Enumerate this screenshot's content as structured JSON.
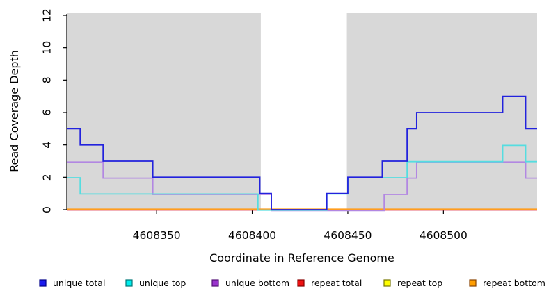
{
  "figure": {
    "background": "#ffffff"
  },
  "chart_data": {
    "type": "line",
    "subtype": "step",
    "title": "",
    "xlabel": "Coordinate in Reference Genome",
    "ylabel": "Read Coverage Depth",
    "xlim": [
      4608303,
      4608549
    ],
    "ylim": [
      0,
      12
    ],
    "x_ticks": [
      4608350,
      4608400,
      4608450,
      4608500
    ],
    "y_ticks": [
      0,
      2,
      4,
      6,
      8,
      10,
      12
    ],
    "grid": false,
    "shaded_regions": {
      "color": "#d8d8d8",
      "ranges": [
        [
          4608303,
          4608404.5
        ],
        [
          4608449.5,
          4608549
        ]
      ]
    },
    "series": [
      {
        "name": "unique total",
        "color": "#2222dd",
        "steps": [
          [
            4608303,
            5
          ],
          [
            4608310,
            4
          ],
          [
            4608322,
            3
          ],
          [
            4608348,
            2
          ],
          [
            4608404,
            1
          ],
          [
            4608410,
            0
          ],
          [
            4608439,
            1
          ],
          [
            4608450,
            2
          ],
          [
            4608468,
            3
          ],
          [
            4608481,
            5
          ],
          [
            4608486,
            6
          ],
          [
            4608531,
            7
          ],
          [
            4608543,
            5
          ],
          [
            4608549,
            5
          ]
        ]
      },
      {
        "name": "unique top",
        "color": "#55dde0",
        "steps": [
          [
            4608303,
            2
          ],
          [
            4608310,
            1
          ],
          [
            4608403,
            0
          ],
          [
            4608439,
            1
          ],
          [
            4608450,
            2
          ],
          [
            4608481,
            3
          ],
          [
            4608531,
            4
          ],
          [
            4608543,
            3
          ],
          [
            4608549,
            3
          ]
        ]
      },
      {
        "name": "unique bottom",
        "color": "#b287e2",
        "steps": [
          [
            4608303,
            3
          ],
          [
            4608322,
            2
          ],
          [
            4608348,
            1
          ],
          [
            4608410,
            0
          ],
          [
            4608469,
            1
          ],
          [
            4608481,
            2
          ],
          [
            4608486,
            3
          ],
          [
            4608543,
            2
          ],
          [
            4608549,
            2
          ]
        ]
      },
      {
        "name": "repeat total",
        "color": "#dd3344",
        "steps": [
          [
            4608303,
            0
          ],
          [
            4608549,
            0
          ]
        ]
      },
      {
        "name": "repeat top",
        "color": "#eeee33",
        "steps": [
          [
            4608303,
            0
          ],
          [
            4608549,
            0
          ]
        ]
      },
      {
        "name": "repeat bottom",
        "color": "#ff9d1e",
        "steps": [
          [
            4608303,
            0
          ],
          [
            4608549,
            0
          ]
        ]
      }
    ],
    "draw_order": [
      "repeat total",
      "repeat top",
      "repeat bottom",
      "unique bottom",
      "unique top",
      "unique total"
    ],
    "legend": {
      "position": "bottom",
      "entries": [
        {
          "label": "unique total",
          "fill": "#1a1aee",
          "border": "#000088"
        },
        {
          "label": "unique top",
          "fill": "#00eeee",
          "border": "#007777"
        },
        {
          "label": "unique bottom",
          "fill": "#9933cc",
          "border": "#551177"
        },
        {
          "label": "repeat total",
          "fill": "#ee1111",
          "border": "#880000"
        },
        {
          "label": "repeat top",
          "fill": "#ffff00",
          "border": "#777700"
        },
        {
          "label": "repeat bottom",
          "fill": "#ff9e00",
          "border": "#884400"
        }
      ]
    }
  }
}
